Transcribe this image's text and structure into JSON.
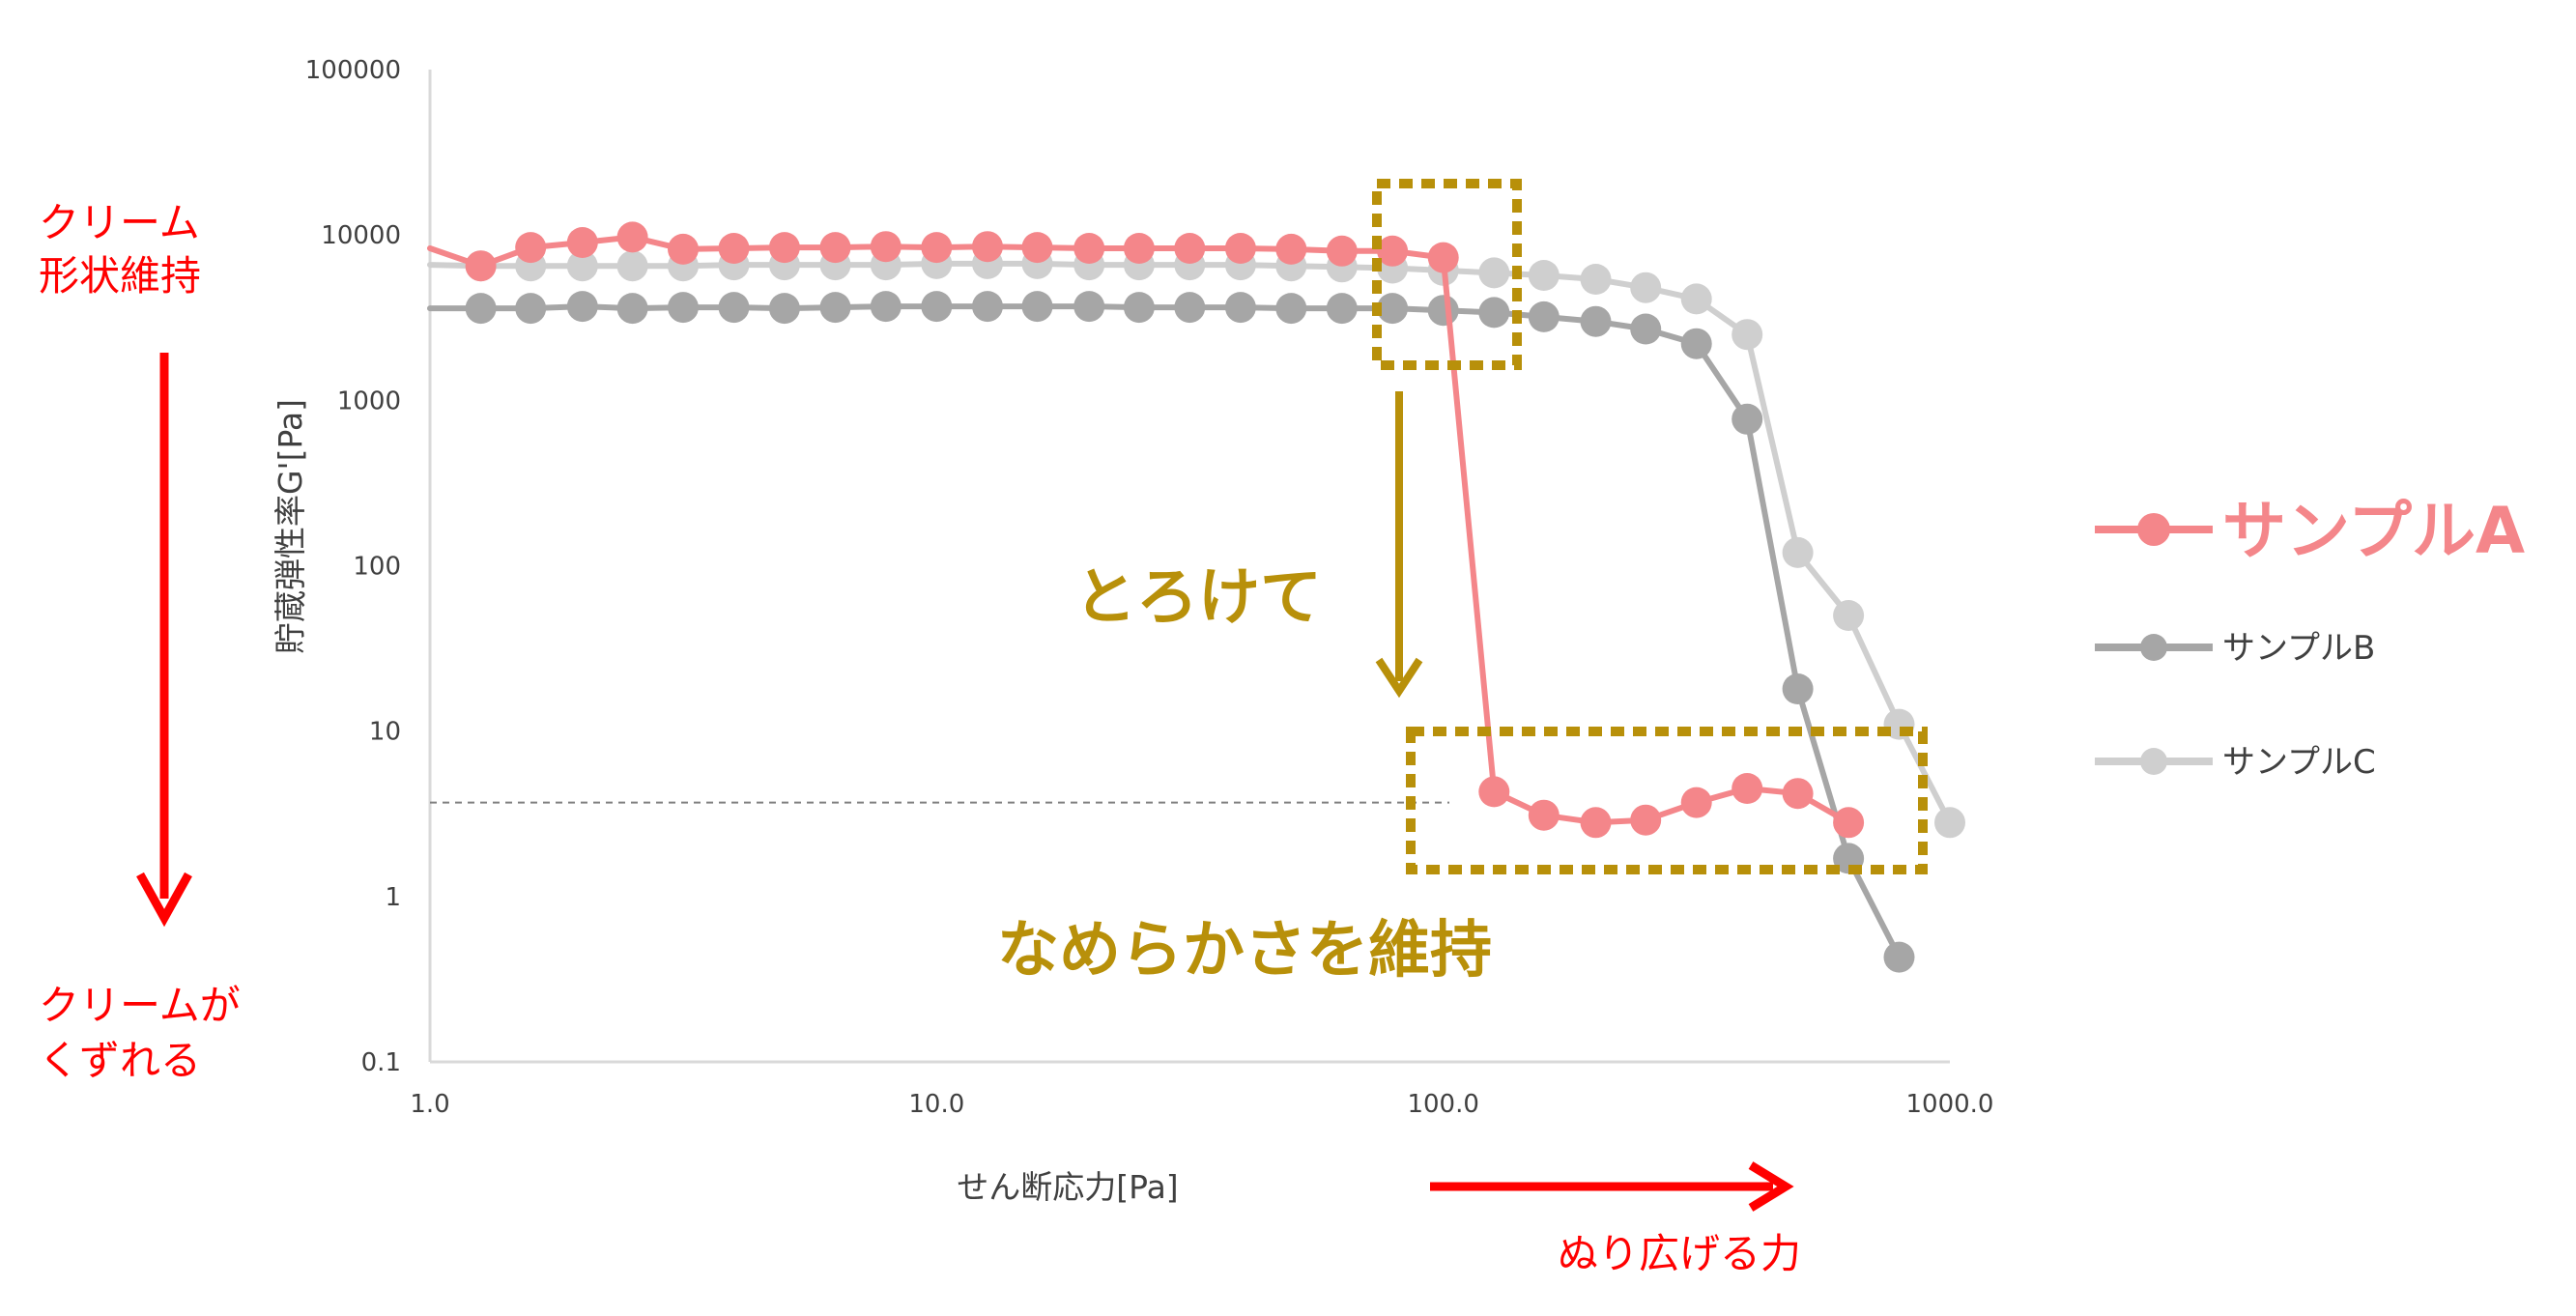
{
  "chart_data": {
    "type": "line",
    "x_scale": "log",
    "y_scale": "log",
    "xlim": [
      1,
      1000
    ],
    "ylim": [
      0.1,
      100000
    ],
    "x_ticks": [
      "1.0",
      "10.0",
      "100.0",
      "1000.0"
    ],
    "y_ticks": [
      "100000",
      "10000",
      "1000",
      "100",
      "10",
      "1",
      "0.1"
    ],
    "xlabel": "せん断応力[Pa]",
    "ylabel": "貯蔵弾性率G'[Pa]",
    "grid": false,
    "legend_position": "right",
    "reference_line_y": 3.7,
    "series": [
      {
        "name": "サンプルA",
        "color": "#f4868a",
        "x": [
          1.0,
          1.26,
          1.58,
          2.0,
          2.51,
          3.16,
          3.98,
          5.01,
          6.31,
          7.94,
          10.0,
          12.6,
          15.8,
          20.0,
          25.1,
          31.6,
          39.8,
          50.1,
          63.1,
          79.4,
          100,
          126,
          158,
          200,
          251,
          316,
          398,
          501,
          631
        ],
        "y": [
          8300,
          6500,
          8400,
          9000,
          9700,
          8200,
          8300,
          8400,
          8400,
          8500,
          8400,
          8500,
          8400,
          8300,
          8300,
          8300,
          8300,
          8200,
          8000,
          8000,
          7300,
          4.3,
          3.1,
          2.8,
          2.9,
          3.7,
          4.5,
          4.2,
          2.8
        ]
      },
      {
        "name": "サンプルB",
        "color": "#a6a6a6",
        "x": [
          1.0,
          1.26,
          1.58,
          2.0,
          2.51,
          3.16,
          3.98,
          5.01,
          6.31,
          7.94,
          10.0,
          12.6,
          15.8,
          20.0,
          25.1,
          31.6,
          39.8,
          50.1,
          63.1,
          79.4,
          100,
          126,
          158,
          200,
          251,
          316,
          398,
          501,
          631,
          794
        ],
        "y": [
          3600,
          3600,
          3600,
          3700,
          3600,
          3650,
          3650,
          3600,
          3650,
          3700,
          3700,
          3700,
          3700,
          3700,
          3650,
          3650,
          3650,
          3600,
          3600,
          3600,
          3500,
          3400,
          3200,
          3000,
          2700,
          2200,
          770,
          18,
          1.7,
          0.43
        ]
      },
      {
        "name": "サンプルC",
        "color": "#cfcfcf",
        "x": [
          1.0,
          1.26,
          1.58,
          2.0,
          2.51,
          3.16,
          3.98,
          5.01,
          6.31,
          7.94,
          10.0,
          12.6,
          15.8,
          20.0,
          25.1,
          31.6,
          39.8,
          50.1,
          63.1,
          79.4,
          100,
          126,
          158,
          200,
          251,
          316,
          398,
          501,
          631,
          794,
          1000
        ],
        "y": [
          6600,
          6500,
          6500,
          6500,
          6500,
          6500,
          6600,
          6600,
          6600,
          6600,
          6700,
          6700,
          6700,
          6600,
          6600,
          6600,
          6600,
          6500,
          6400,
          6300,
          6100,
          5900,
          5700,
          5400,
          4800,
          4100,
          2500,
          120,
          50,
          11,
          2.8
        ]
      }
    ]
  },
  "annotations": {
    "left_top": [
      "クリーム",
      "形状維持"
    ],
    "left_bottom": [
      "クリームが",
      "くずれる"
    ],
    "melt": "とろけて",
    "smooth": "なめらかさを維持",
    "spread": "ぬり広げる力"
  }
}
